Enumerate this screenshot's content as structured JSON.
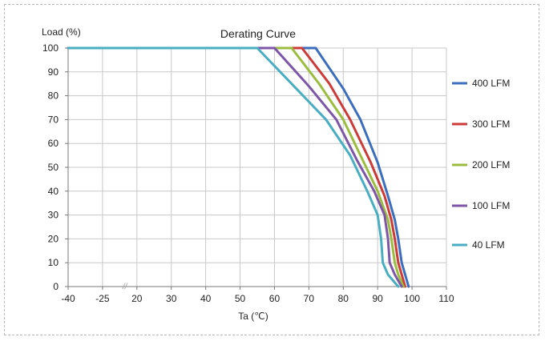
{
  "chart_data": {
    "type": "line",
    "title": "Derating Curve",
    "xlabel": "Ta (℃)",
    "ylabel": "Load (%)",
    "xlim": [
      -40,
      110
    ],
    "ylim": [
      0,
      100
    ],
    "x_ticks": [
      -40,
      -25,
      20,
      30,
      40,
      50,
      60,
      70,
      80,
      90,
      100,
      110
    ],
    "x_tick_labels": [
      "-40",
      "-25",
      "20",
      "30",
      "40",
      "50",
      "60",
      "70",
      "80",
      "90",
      "100",
      "110"
    ],
    "y_ticks": [
      0,
      10,
      20,
      30,
      40,
      50,
      60,
      70,
      80,
      90,
      100
    ],
    "axis_break_label": "//",
    "grid": true,
    "legend_position": "right",
    "series": [
      {
        "name": "400 LFM",
        "color": "#3c6ebf",
        "x": [
          -40,
          72,
          80,
          85,
          90,
          93,
          95,
          96,
          97,
          98,
          99
        ],
        "y": [
          100,
          100,
          83,
          70,
          52,
          38,
          28,
          20,
          10,
          5,
          0
        ]
      },
      {
        "name": "300 LFM",
        "color": "#cc3b38",
        "x": [
          -40,
          68,
          76,
          82,
          88,
          92,
          94,
          95,
          96,
          97,
          98
        ],
        "y": [
          100,
          100,
          85,
          70,
          52,
          38,
          28,
          20,
          10,
          5,
          0
        ]
      },
      {
        "name": "200 LFM",
        "color": "#9bbd3f",
        "x": [
          -40,
          65,
          73,
          80,
          86,
          90,
          93,
          94,
          95,
          96,
          97.5
        ],
        "y": [
          100,
          100,
          85,
          70,
          52,
          40,
          28,
          20,
          10,
          5,
          0
        ]
      },
      {
        "name": "100 LFM",
        "color": "#7e56a8",
        "x": [
          -40,
          60,
          70,
          78,
          84,
          89,
          92,
          93,
          93.5,
          95,
          97
        ],
        "y": [
          100,
          100,
          84,
          70,
          53,
          40,
          30,
          20,
          10,
          5,
          0
        ]
      },
      {
        "name": "40 LFM",
        "color": "#4aaec3",
        "x": [
          -40,
          55,
          65,
          75,
          82,
          87,
          90,
          91,
          91.5,
          93,
          96
        ],
        "y": [
          100,
          100,
          85,
          70,
          55,
          40,
          30,
          20,
          10,
          5,
          0
        ]
      }
    ]
  }
}
